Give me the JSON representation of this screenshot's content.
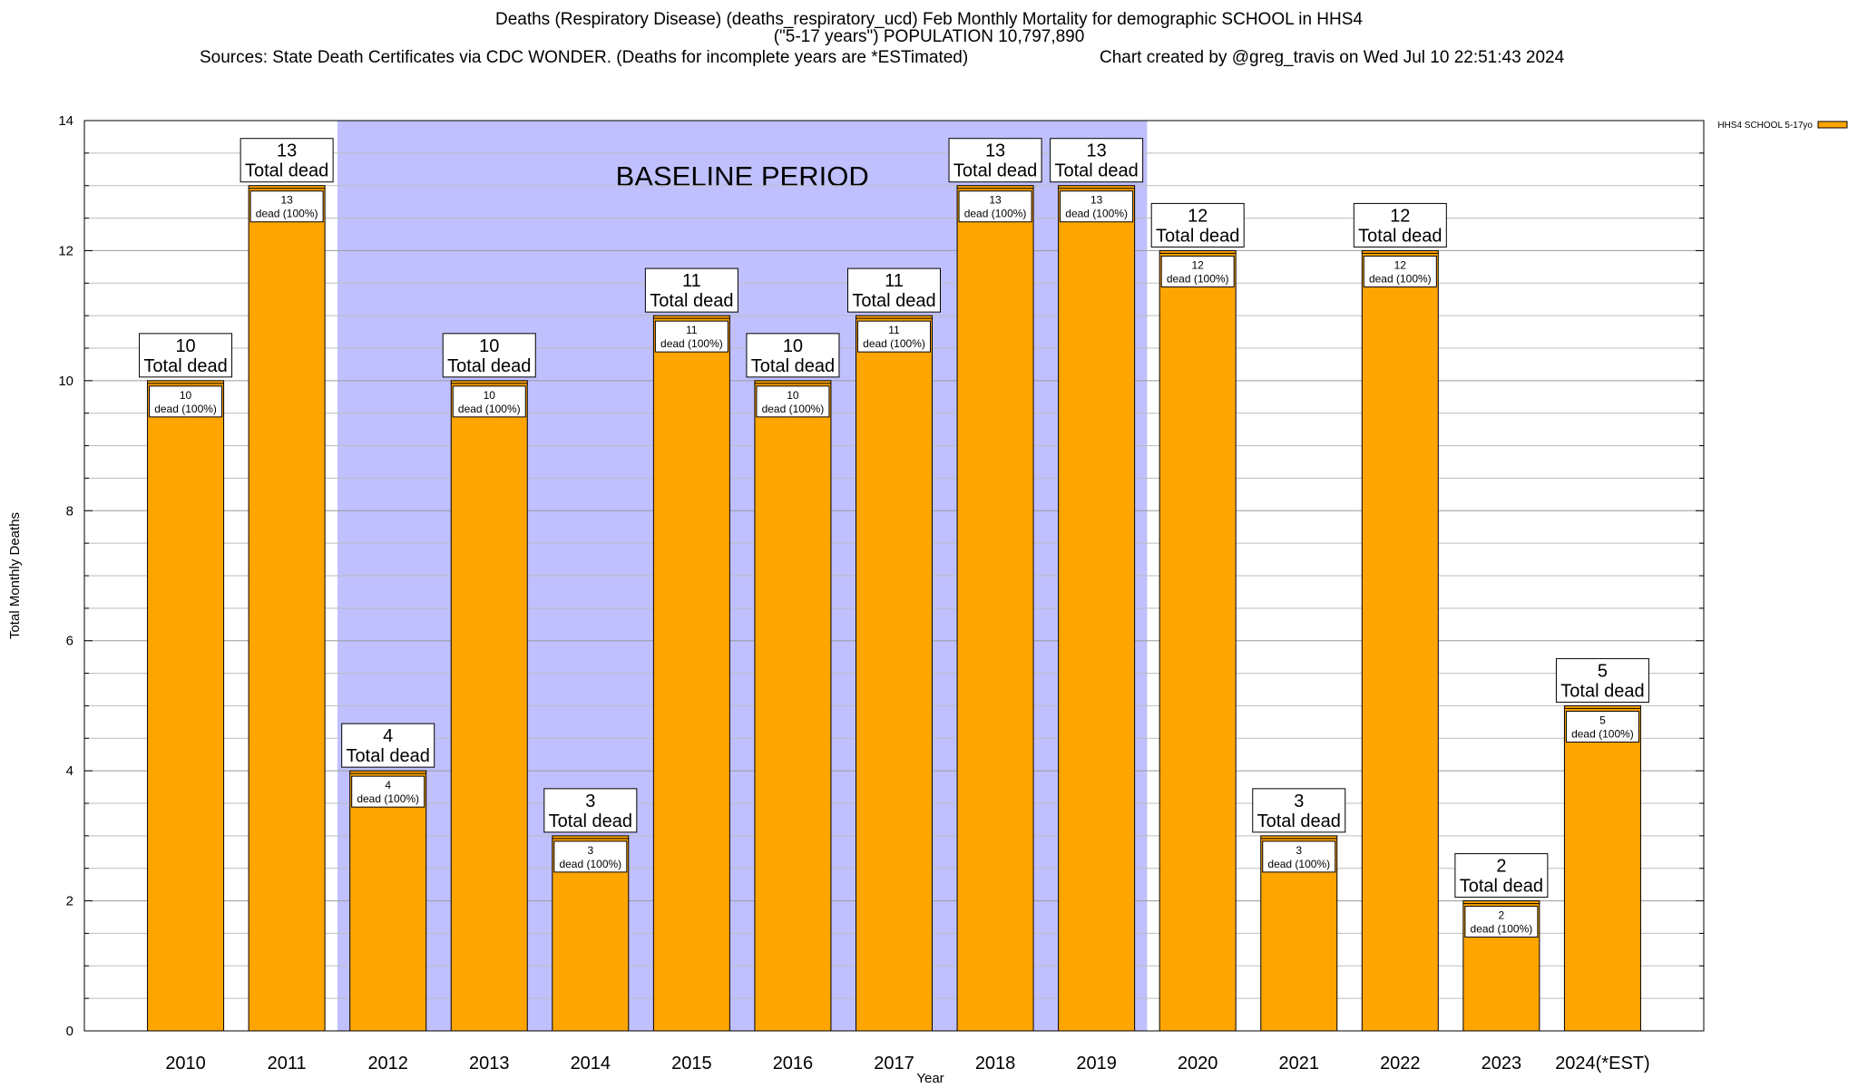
{
  "title": {
    "line1": "Deaths (Respiratory Disease) (deaths_respiratory_ucd) Feb Monthly Mortality for demographic SCHOOL in HHS4",
    "line2": "(\"5-17 years\") POPULATION 10,797,890",
    "sources": "Sources: State Death Certificates via CDC WONDER. (Deaths for incomplete years are *ESTimated)",
    "credit": "Chart created by @greg_travis on Wed Jul 10 22:51:43 2024"
  },
  "chart_data": {
    "type": "bar",
    "categories": [
      "2010",
      "2011",
      "2012",
      "2013",
      "2014",
      "2015",
      "2016",
      "2017",
      "2018",
      "2019",
      "2020",
      "2021",
      "2022",
      "2023",
      "2024(*EST)"
    ],
    "series": [
      {
        "name": "HHS4 SCHOOL 5-17yo",
        "values": [
          10,
          13,
          4,
          10,
          3,
          11,
          10,
          11,
          13,
          13,
          12,
          3,
          12,
          2,
          5
        ],
        "color": "#ffa500"
      }
    ],
    "xlabel": "Year",
    "ylabel": "Total Monthly Deaths",
    "ylim": [
      0,
      14
    ],
    "yticks": [
      0,
      2,
      4,
      6,
      8,
      10,
      12,
      14
    ],
    "grid": true,
    "legend_position": "top-right",
    "total_label_suffix": "Total dead",
    "inner_label_suffix": "dead (100%)",
    "baseline": {
      "label": "BASELINE PERIOD",
      "from": "2012",
      "to": "2019",
      "color": "#c0c0ff"
    }
  }
}
